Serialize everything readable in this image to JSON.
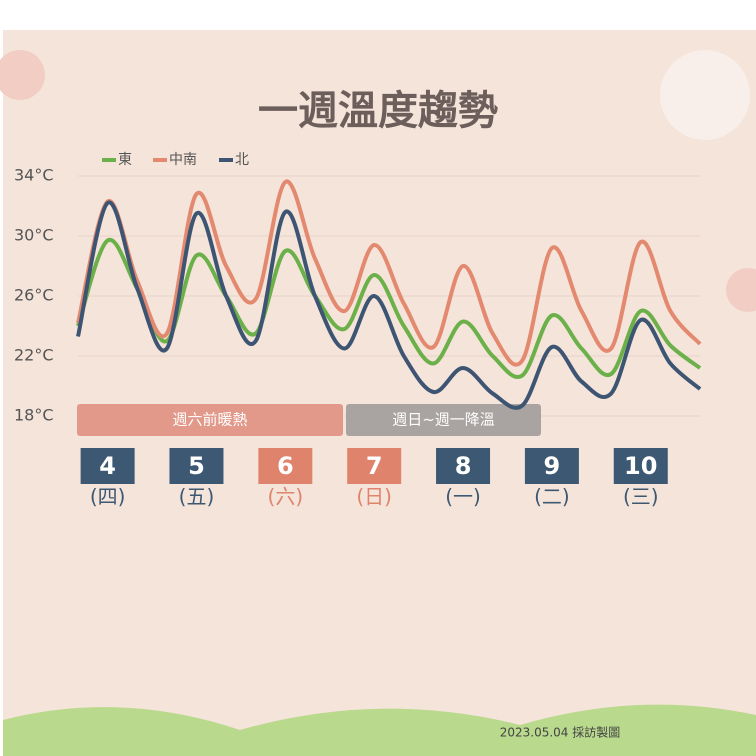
{
  "chart_data": {
    "type": "line",
    "title": "一週溫度趨勢",
    "categories": [
      null,
      "4",
      null,
      null,
      "5",
      null,
      null,
      "6",
      null,
      null,
      "7",
      null,
      null,
      "8",
      null,
      null,
      "9",
      null,
      null,
      "10",
      null,
      null
    ],
    "weekdays": [
      null,
      "(四)",
      null,
      null,
      "(五)",
      null,
      null,
      "(六)",
      null,
      null,
      "(日)",
      null,
      null,
      "(一)",
      null,
      null,
      "(二)",
      null,
      null,
      "(三)",
      null,
      null
    ],
    "category_colors": [
      null,
      "#3d5873",
      null,
      null,
      "#3d5873",
      null,
      null,
      "#e0836c",
      null,
      null,
      "#e0836c",
      null,
      null,
      "#3d5873",
      null,
      null,
      "#3d5873",
      null,
      null,
      "#3d5873",
      null,
      null
    ],
    "series": [
      {
        "name": "東",
        "color": "#6cb04a",
        "values": [
          24,
          29.7,
          26.5,
          23,
          28.7,
          26,
          23.5,
          29,
          26,
          23.8,
          27.4,
          24,
          21.5,
          24.3,
          22,
          20.7,
          24.7,
          22.5,
          20.8,
          25,
          22.7,
          21.2
        ]
      },
      {
        "name": "中南",
        "color": "#e3896f",
        "values": [
          24.2,
          32.3,
          27,
          23.5,
          32.8,
          28,
          25.8,
          33.6,
          28.5,
          25,
          29.4,
          25.5,
          22.6,
          28,
          23.5,
          21.7,
          29.2,
          25,
          22.5,
          29.6,
          25,
          22.8
        ]
      },
      {
        "name": "北",
        "color": "#3d5573",
        "values": [
          23.3,
          32.2,
          26.5,
          22.5,
          31.5,
          26,
          23,
          31.6,
          26,
          22.5,
          26,
          22,
          19.6,
          21.2,
          19.5,
          18.7,
          22.6,
          20.3,
          19.5,
          24.4,
          21.5,
          19.8
        ]
      }
    ],
    "ylim": [
      18,
      34
    ],
    "yticks": [
      {
        "value": 18,
        "label": "18°C"
      },
      {
        "value": 22,
        "label": "22°C"
      },
      {
        "value": 26,
        "label": "26°C"
      },
      {
        "value": 30,
        "label": "30°C"
      },
      {
        "value": 34,
        "label": "34°C"
      }
    ],
    "grid": true,
    "annotations": [
      {
        "text": "週六前暖熱",
        "color": "#e3998a"
      },
      {
        "text": "週日~週一降溫",
        "color": "#a9a3a1"
      }
    ],
    "footer": "2023.05.04 採訪製圖"
  }
}
